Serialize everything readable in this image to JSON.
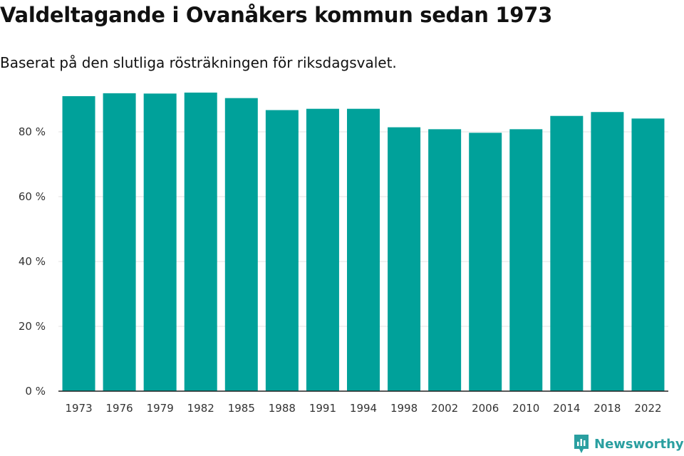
{
  "header": {
    "title": "Valdeltagande i Ovanåkers kommun sedan 1973",
    "subtitle": "Baserat på den slutliga rösträkningen för riksdagsvalet."
  },
  "brand": {
    "name": "Newsworthy",
    "icon": "newsworthy-logo-icon",
    "color": "#2a9fa0"
  },
  "chart_data": {
    "type": "bar",
    "title": "Valdeltagande i Ovanåkers kommun sedan 1973",
    "subtitle": "Baserat på den slutliga rösträkningen för riksdagsvalet.",
    "xlabel": "",
    "ylabel": "",
    "categories": [
      "1973",
      "1976",
      "1979",
      "1982",
      "1985",
      "1988",
      "1991",
      "1994",
      "1998",
      "2002",
      "2006",
      "2010",
      "2014",
      "2018",
      "2022"
    ],
    "values": [
      91.0,
      91.9,
      91.8,
      92.1,
      90.4,
      86.7,
      87.1,
      87.1,
      81.4,
      80.8,
      79.7,
      80.8,
      84.9,
      86.1,
      84.1
    ],
    "ylim": [
      0,
      100
    ],
    "yticks": [
      0,
      20,
      40,
      60,
      80
    ],
    "ytick_labels": [
      "0 %",
      "20 %",
      "40 %",
      "60 %",
      "80 %"
    ],
    "bar_color": "#00a19a",
    "grid": true,
    "legend": "none"
  }
}
